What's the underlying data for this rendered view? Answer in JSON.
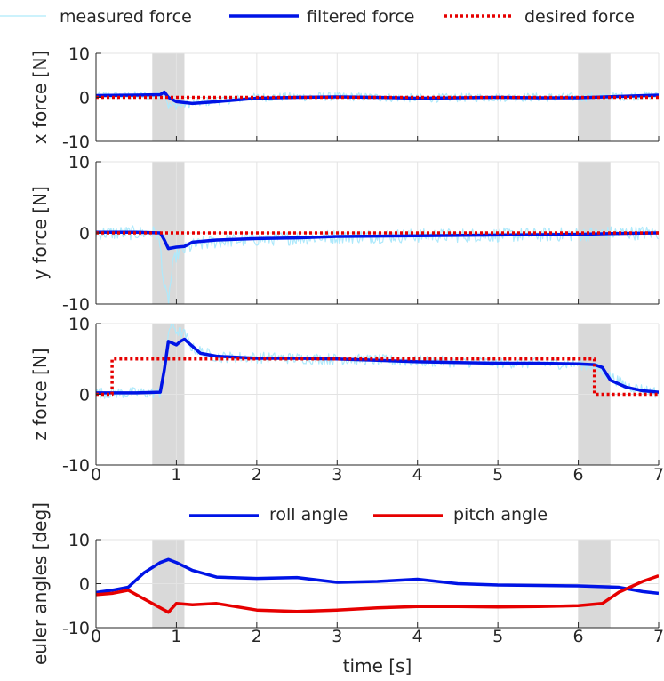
{
  "legend_top": [
    {
      "label": "measured force",
      "color": "#aee9fb",
      "style": "thin"
    },
    {
      "label": "filtered force",
      "color": "#0014e6",
      "style": "thick"
    },
    {
      "label": "desired force",
      "color": "#e60000",
      "style": "dotted"
    }
  ],
  "legend_bottom": [
    {
      "label": "roll angle",
      "color": "#0014e6"
    },
    {
      "label": "pitch angle",
      "color": "#e60000"
    }
  ],
  "chart_data": [
    {
      "type": "line",
      "ylabel": "x force [N]",
      "xlim": [
        0,
        7
      ],
      "ylim": [
        -10,
        10
      ],
      "yticks": [
        "10",
        "0",
        "-10"
      ],
      "shaded_intervals": [
        [
          0.7,
          1.1
        ],
        [
          6.0,
          6.4
        ]
      ],
      "series": [
        {
          "name": "measured force",
          "style": "noisy",
          "noise_amplitude": 1.0,
          "x": [
            0,
            0.8,
            0.85,
            0.9,
            1.0,
            1.2,
            1.5,
            2.0,
            3.0,
            4.0,
            5.0,
            6.0,
            6.5,
            7.0
          ],
          "y": [
            0.3,
            0.4,
            1.5,
            -2.0,
            -1.8,
            -1.4,
            -0.8,
            0.0,
            0.2,
            -0.2,
            0.0,
            0.0,
            0.2,
            0.4
          ]
        },
        {
          "name": "filtered force",
          "x": [
            0,
            0.5,
            0.8,
            0.85,
            0.9,
            1.0,
            1.2,
            1.5,
            2.0,
            2.5,
            3.0,
            3.5,
            4.0,
            4.5,
            5.0,
            5.5,
            6.0,
            6.5,
            7.0
          ],
          "y": [
            0.4,
            0.5,
            0.6,
            1.2,
            0.0,
            -1.0,
            -1.4,
            -1.0,
            -0.2,
            0.0,
            0.1,
            0.0,
            -0.2,
            -0.1,
            0.0,
            -0.1,
            -0.1,
            0.2,
            0.5
          ]
        },
        {
          "name": "desired force",
          "x": [
            0,
            7
          ],
          "y": [
            0,
            0
          ]
        }
      ]
    },
    {
      "type": "line",
      "ylabel": "y force [N]",
      "xlim": [
        0,
        7
      ],
      "ylim": [
        -10,
        10
      ],
      "yticks": [
        "10",
        "0",
        "-10"
      ],
      "shaded_intervals": [
        [
          0.7,
          1.1
        ],
        [
          6.0,
          6.4
        ]
      ],
      "series": [
        {
          "name": "measured force",
          "style": "noisy",
          "noise_amplitude": 1.0,
          "x": [
            0,
            0.75,
            0.8,
            0.85,
            0.9,
            0.95,
            1.0,
            1.2,
            1.5,
            2.0,
            3.0,
            4.0,
            5.0,
            6.0,
            6.5,
            7.0
          ],
          "y": [
            0.0,
            0.0,
            -2.0,
            -8.0,
            -9.5,
            -5.0,
            -3.0,
            -1.8,
            -1.2,
            -0.9,
            -0.5,
            -0.4,
            -0.3,
            -0.2,
            0.0,
            0.0
          ]
        },
        {
          "name": "filtered force",
          "x": [
            0,
            0.5,
            0.8,
            0.85,
            0.9,
            1.0,
            1.1,
            1.2,
            1.5,
            2.0,
            2.5,
            3.0,
            4.0,
            5.0,
            6.0,
            6.4,
            7.0
          ],
          "y": [
            0.1,
            0.1,
            0.0,
            -1.0,
            -2.2,
            -2.0,
            -1.9,
            -1.3,
            -1.0,
            -0.8,
            -0.7,
            -0.5,
            -0.4,
            -0.3,
            -0.2,
            -0.1,
            0.0
          ]
        },
        {
          "name": "desired force",
          "x": [
            0,
            7
          ],
          "y": [
            0,
            0
          ]
        }
      ]
    },
    {
      "type": "line",
      "ylabel": "z force [N]",
      "xlim": [
        0,
        7
      ],
      "ylim": [
        -10,
        10
      ],
      "yticks": [
        "10",
        "0",
        "-10"
      ],
      "xticks": [
        "0",
        "1",
        "2",
        "3",
        "4",
        "5",
        "6",
        "7"
      ],
      "shaded_intervals": [
        [
          0.7,
          1.1
        ],
        [
          6.0,
          6.4
        ]
      ],
      "series": [
        {
          "name": "measured force",
          "style": "noisy",
          "noise_amplitude": 0.8,
          "x": [
            0,
            0.8,
            0.85,
            0.9,
            0.95,
            1.0,
            1.1,
            1.2,
            1.5,
            2.0,
            3.0,
            4.0,
            5.0,
            6.0,
            6.2,
            6.4,
            6.6,
            7.0
          ],
          "y": [
            0.2,
            0.2,
            3.0,
            9.0,
            10.0,
            9.0,
            8.5,
            6.5,
            5.3,
            5.2,
            5.0,
            4.7,
            4.5,
            4.3,
            4.0,
            2.5,
            1.2,
            0.2
          ]
        },
        {
          "name": "filtered force",
          "x": [
            0,
            0.5,
            0.8,
            0.85,
            0.9,
            1.0,
            1.05,
            1.1,
            1.2,
            1.3,
            1.5,
            2.0,
            2.5,
            3.0,
            3.5,
            4.0,
            4.5,
            5.0,
            5.5,
            6.0,
            6.2,
            6.3,
            6.4,
            6.6,
            6.8,
            7.0
          ],
          "y": [
            0.2,
            0.2,
            0.3,
            3.5,
            7.5,
            7.0,
            7.5,
            7.8,
            6.8,
            5.8,
            5.4,
            5.1,
            5.1,
            5.0,
            4.8,
            4.6,
            4.5,
            4.4,
            4.4,
            4.3,
            4.2,
            3.8,
            2.0,
            1.0,
            0.5,
            0.3
          ]
        },
        {
          "name": "desired force",
          "x": [
            0,
            0.2,
            0.2,
            6.2,
            6.2,
            7.0
          ],
          "y": [
            0,
            0,
            5,
            5,
            0,
            0
          ]
        }
      ]
    },
    {
      "type": "line",
      "ylabel": "euler angles [deg]",
      "xlabel": "time [s]",
      "xlim": [
        0,
        7
      ],
      "ylim": [
        -10,
        10
      ],
      "yticks": [
        "10",
        "0",
        "-10"
      ],
      "xticks": [
        "0",
        "1",
        "2",
        "3",
        "4",
        "5",
        "6",
        "7"
      ],
      "shaded_intervals": [
        [
          0.7,
          1.1
        ],
        [
          6.0,
          6.4
        ]
      ],
      "series": [
        {
          "name": "roll angle",
          "x": [
            0,
            0.2,
            0.4,
            0.6,
            0.8,
            0.9,
            1.0,
            1.2,
            1.5,
            2.0,
            2.5,
            3.0,
            3.5,
            4.0,
            4.5,
            5.0,
            5.5,
            6.0,
            6.5,
            6.8,
            7.0
          ],
          "y": [
            -2.0,
            -1.5,
            -0.8,
            2.5,
            4.8,
            5.5,
            4.8,
            3.0,
            1.5,
            1.2,
            1.4,
            0.3,
            0.5,
            1.0,
            0.0,
            -0.3,
            -0.4,
            -0.5,
            -0.8,
            -1.8,
            -2.2
          ]
        },
        {
          "name": "pitch angle",
          "x": [
            0,
            0.2,
            0.4,
            0.6,
            0.8,
            0.9,
            1.0,
            1.2,
            1.5,
            2.0,
            2.5,
            3.0,
            3.5,
            4.0,
            4.5,
            5.0,
            5.5,
            6.0,
            6.3,
            6.5,
            6.8,
            7.0
          ],
          "y": [
            -2.5,
            -2.2,
            -1.5,
            -3.5,
            -5.5,
            -6.5,
            -4.5,
            -4.8,
            -4.5,
            -6.0,
            -6.3,
            -6.0,
            -5.5,
            -5.2,
            -5.2,
            -5.3,
            -5.2,
            -5.0,
            -4.5,
            -2.0,
            0.5,
            1.8
          ]
        }
      ]
    }
  ]
}
